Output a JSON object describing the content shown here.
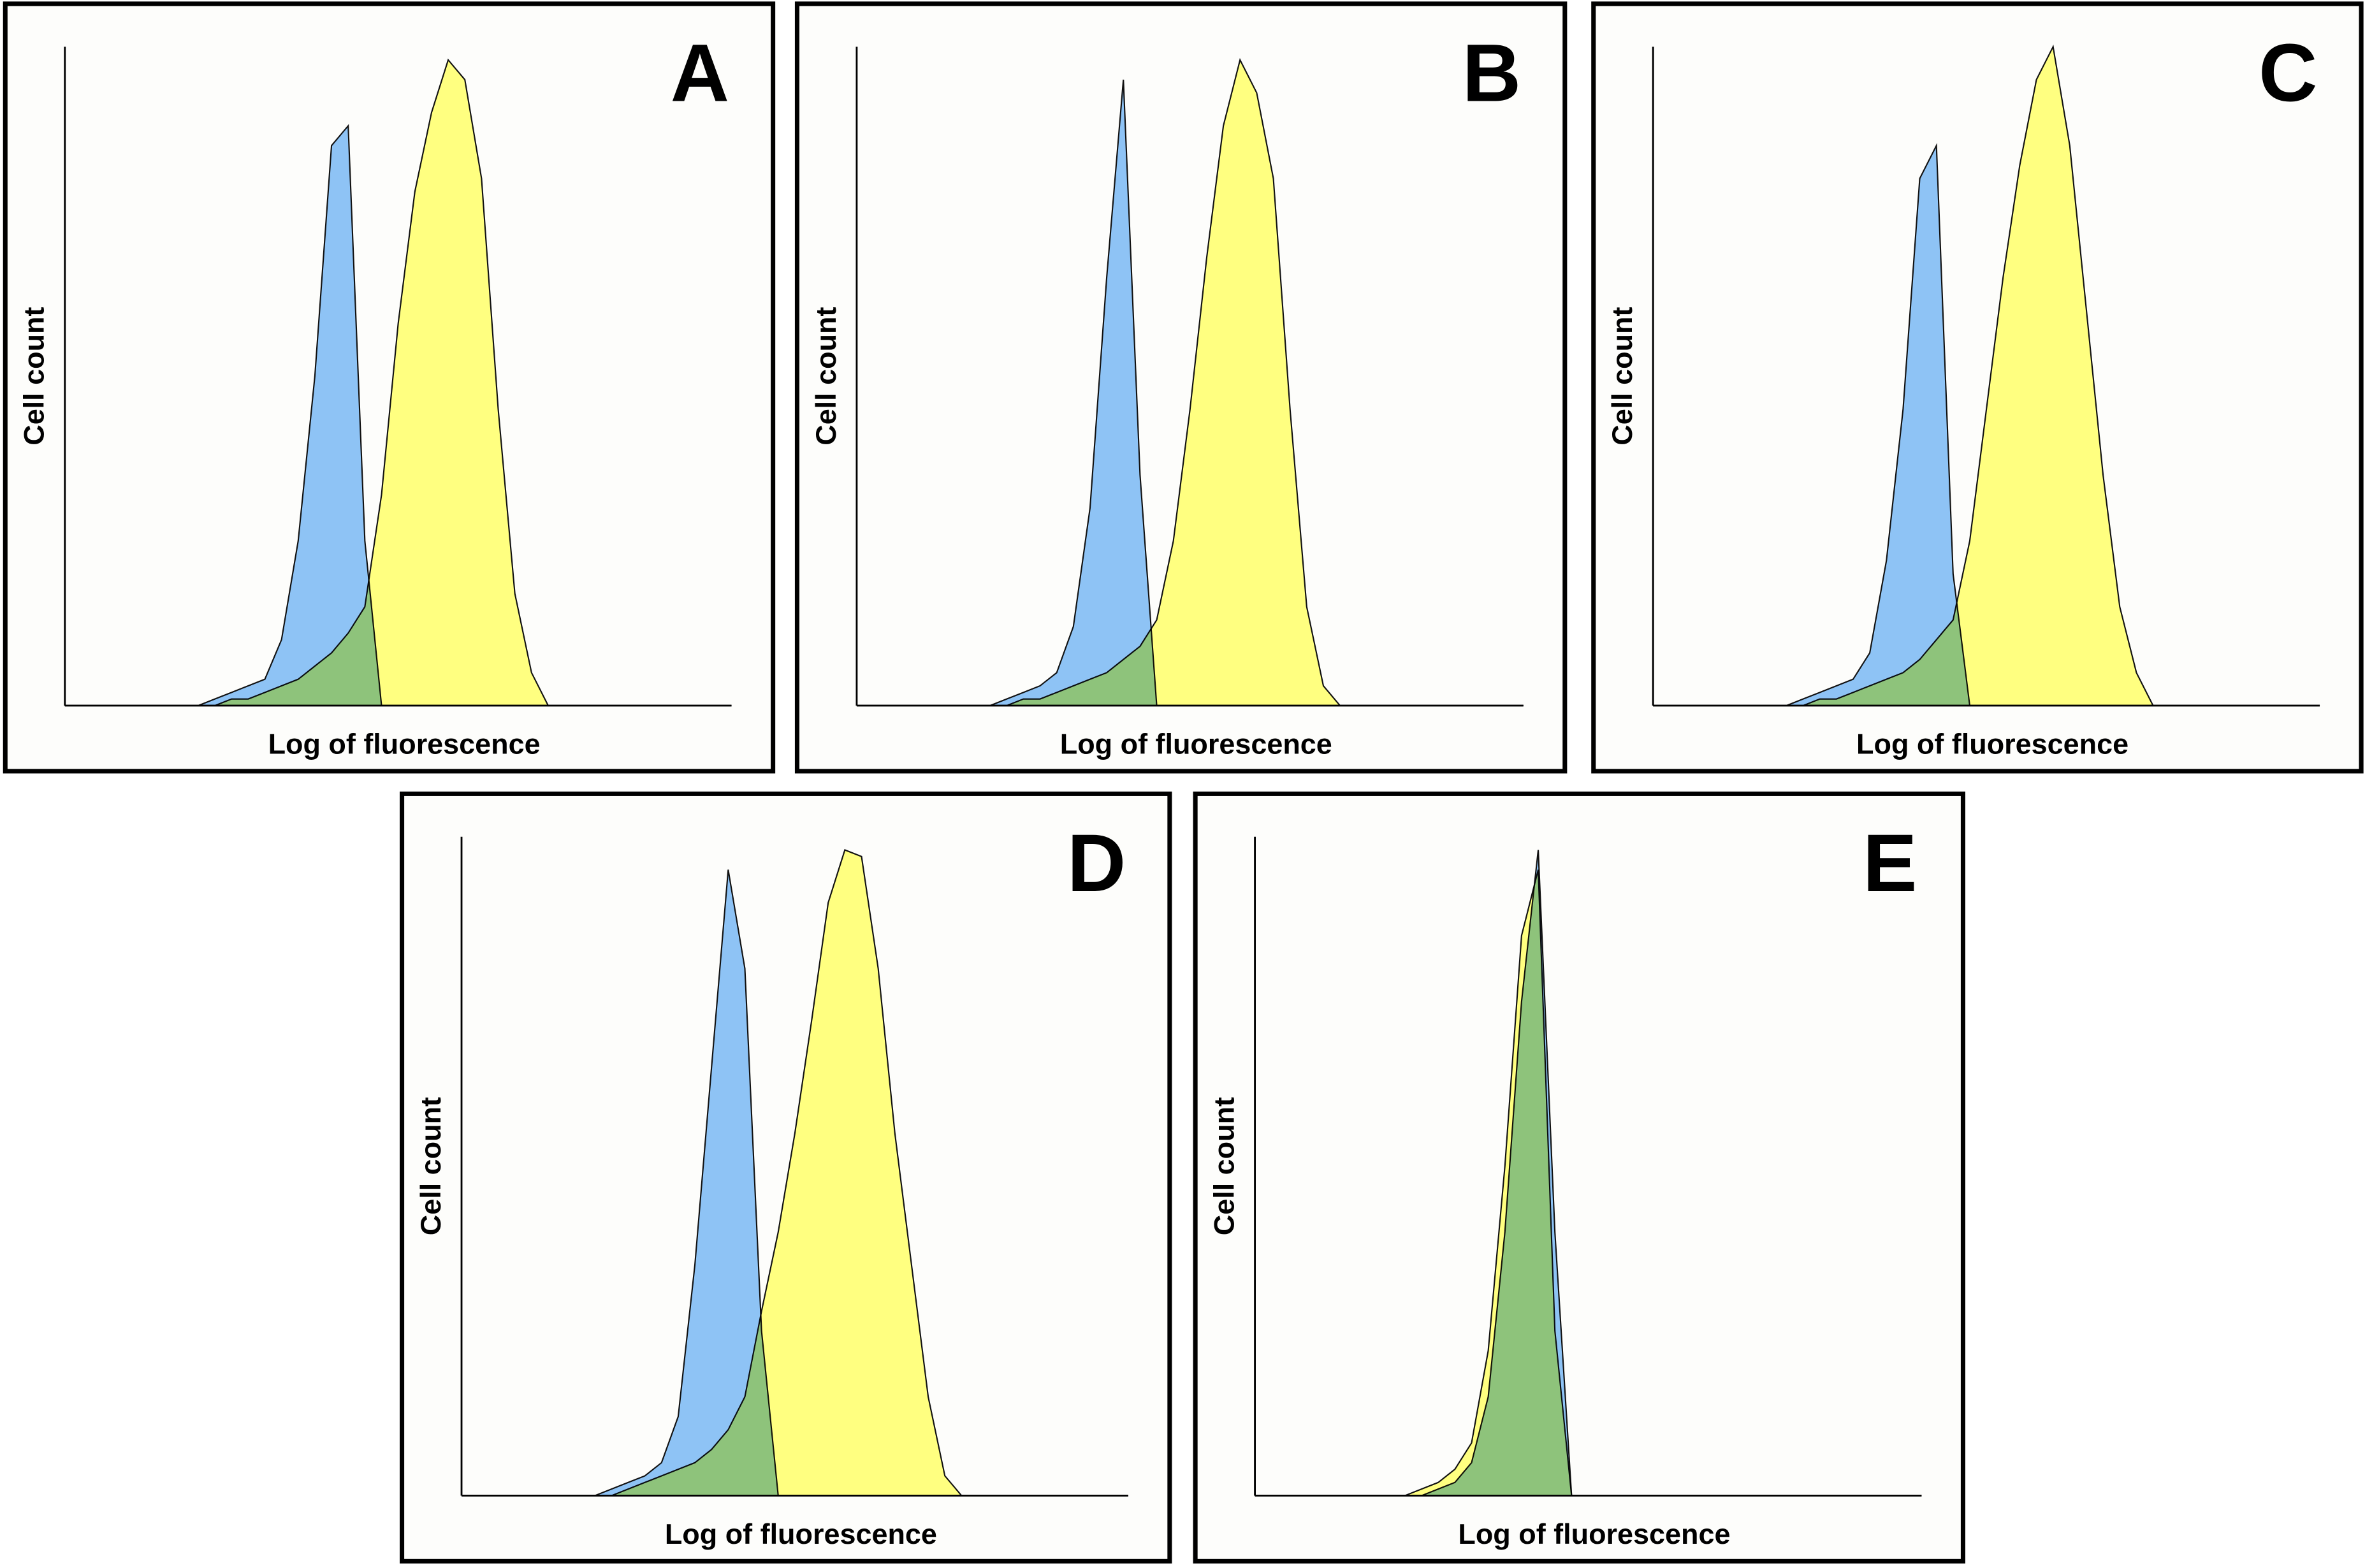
{
  "chart_data": [
    {
      "type": "area",
      "panel_label": "A",
      "ylabel": "Cell count",
      "xlabel": "Log of fluorescence",
      "xlim": [
        0,
        100
      ],
      "ylim": [
        0,
        100
      ],
      "x": [
        0,
        2.5,
        5,
        7.5,
        10,
        12.5,
        15,
        17.5,
        20,
        22.5,
        25,
        27.5,
        30,
        32.5,
        35,
        37.5,
        40,
        42.5,
        45,
        47.5,
        50,
        52.5,
        55,
        57.5,
        60,
        62.5,
        65,
        67.5,
        70,
        72.5,
        75,
        77.5,
        80,
        82.5,
        85,
        87.5,
        90,
        92.5,
        95,
        97.5,
        100
      ],
      "series": [
        {
          "color": "#8ec3f5",
          "values": [
            0,
            0,
            0,
            0,
            0,
            0,
            0,
            0,
            0,
            1,
            2,
            3,
            4,
            10,
            25,
            50,
            85,
            88,
            25,
            0,
            0,
            0,
            0,
            0,
            0,
            0,
            0,
            0,
            0,
            0,
            0,
            0,
            0,
            0,
            0,
            0,
            0,
            0,
            0,
            0,
            0
          ]
        },
        {
          "color": "#ffff80",
          "values": [
            0,
            0,
            0,
            0,
            0,
            0,
            0,
            0,
            0,
            0,
            1,
            1,
            2,
            3,
            4,
            6,
            8,
            11,
            15,
            32,
            58,
            78,
            90,
            98,
            95,
            80,
            45,
            17,
            5,
            0,
            0,
            0,
            0,
            0,
            0,
            0,
            0,
            0,
            0,
            0,
            0
          ]
        }
      ]
    },
    {
      "type": "area",
      "panel_label": "B",
      "ylabel": "Cell count",
      "xlabel": "Log of fluorescence",
      "xlim": [
        0,
        100
      ],
      "ylim": [
        0,
        100
      ],
      "x": [
        0,
        2.5,
        5,
        7.5,
        10,
        12.5,
        15,
        17.5,
        20,
        22.5,
        25,
        27.5,
        30,
        32.5,
        35,
        37.5,
        40,
        42.5,
        45,
        47.5,
        50,
        52.5,
        55,
        57.5,
        60,
        62.5,
        65,
        67.5,
        70,
        72.5,
        75,
        77.5,
        80,
        82.5,
        85,
        87.5,
        90,
        92.5,
        95,
        97.5,
        100
      ],
      "series": [
        {
          "color": "#8ec3f5",
          "values": [
            0,
            0,
            0,
            0,
            0,
            0,
            0,
            0,
            0,
            1,
            2,
            3,
            5,
            12,
            30,
            65,
            95,
            35,
            0,
            0,
            0,
            0,
            0,
            0,
            0,
            0,
            0,
            0,
            0,
            0,
            0,
            0,
            0,
            0,
            0,
            0,
            0,
            0,
            0,
            0,
            0
          ]
        },
        {
          "color": "#ffff80",
          "values": [
            0,
            0,
            0,
            0,
            0,
            0,
            0,
            0,
            0,
            0,
            1,
            1,
            2,
            3,
            4,
            5,
            7,
            9,
            13,
            25,
            45,
            68,
            88,
            98,
            93,
            80,
            45,
            15,
            3,
            0,
            0,
            0,
            0,
            0,
            0,
            0,
            0,
            0,
            0,
            0,
            0
          ]
        }
      ]
    },
    {
      "type": "area",
      "panel_label": "C",
      "ylabel": "Cell count",
      "xlabel": "Log of fluorescence",
      "xlim": [
        0,
        100
      ],
      "ylim": [
        0,
        100
      ],
      "x": [
        0,
        2.5,
        5,
        7.5,
        10,
        12.5,
        15,
        17.5,
        20,
        22.5,
        25,
        27.5,
        30,
        32.5,
        35,
        37.5,
        40,
        42.5,
        45,
        47.5,
        50,
        52.5,
        55,
        57.5,
        60,
        62.5,
        65,
        67.5,
        70,
        72.5,
        75,
        77.5,
        80,
        82.5,
        85,
        87.5,
        90,
        92.5,
        95,
        97.5,
        100
      ],
      "series": [
        {
          "color": "#8ec3f5",
          "values": [
            0,
            0,
            0,
            0,
            0,
            0,
            0,
            0,
            0,
            1,
            2,
            3,
            4,
            8,
            22,
            45,
            80,
            85,
            20,
            0,
            0,
            0,
            0,
            0,
            0,
            0,
            0,
            0,
            0,
            0,
            0,
            0,
            0,
            0,
            0,
            0,
            0,
            0,
            0,
            0,
            0
          ]
        },
        {
          "color": "#ffff80",
          "values": [
            0,
            0,
            0,
            0,
            0,
            0,
            0,
            0,
            0,
            0,
            1,
            1,
            2,
            3,
            4,
            5,
            7,
            10,
            13,
            25,
            45,
            65,
            82,
            95,
            100,
            85,
            60,
            35,
            15,
            5,
            0,
            0,
            0,
            0,
            0,
            0,
            0,
            0,
            0,
            0,
            0
          ]
        }
      ]
    },
    {
      "type": "area",
      "panel_label": "D",
      "ylabel": "Cell count",
      "xlabel": "Log of fluorescence",
      "xlim": [
        0,
        100
      ],
      "ylim": [
        0,
        100
      ],
      "x": [
        0,
        2.5,
        5,
        7.5,
        10,
        12.5,
        15,
        17.5,
        20,
        22.5,
        25,
        27.5,
        30,
        32.5,
        35,
        37.5,
        40,
        42.5,
        45,
        47.5,
        50,
        52.5,
        55,
        57.5,
        60,
        62.5,
        65,
        67.5,
        70,
        72.5,
        75,
        77.5,
        80,
        82.5,
        85,
        87.5,
        90,
        92.5,
        95,
        97.5,
        100
      ],
      "series": [
        {
          "color": "#8ec3f5",
          "values": [
            0,
            0,
            0,
            0,
            0,
            0,
            0,
            0,
            0,
            1,
            2,
            3,
            5,
            12,
            35,
            65,
            95,
            80,
            25,
            0,
            0,
            0,
            0,
            0,
            0,
            0,
            0,
            0,
            0,
            0,
            0,
            0,
            0,
            0,
            0,
            0,
            0,
            0,
            0,
            0,
            0
          ]
        },
        {
          "color": "#ffff80",
          "values": [
            0,
            0,
            0,
            0,
            0,
            0,
            0,
            0,
            0,
            0,
            1,
            2,
            3,
            4,
            5,
            7,
            10,
            15,
            28,
            40,
            55,
            72,
            90,
            98,
            97,
            80,
            55,
            35,
            15,
            3,
            0,
            0,
            0,
            0,
            0,
            0,
            0,
            0,
            0,
            0,
            0
          ]
        }
      ]
    },
    {
      "type": "area",
      "panel_label": "E",
      "ylabel": "Cell count",
      "xlabel": "Log of fluorescence",
      "xlim": [
        0,
        100
      ],
      "ylim": [
        0,
        100
      ],
      "x": [
        0,
        2.5,
        5,
        7.5,
        10,
        12.5,
        15,
        17.5,
        20,
        22.5,
        25,
        27.5,
        30,
        32.5,
        35,
        37.5,
        40,
        42.5,
        45,
        47.5,
        50,
        52.5,
        55,
        57.5,
        60,
        62.5,
        65,
        67.5,
        70,
        72.5,
        75,
        77.5,
        80,
        82.5,
        85,
        87.5,
        90,
        92.5,
        95,
        97.5,
        100
      ],
      "series": [
        {
          "color": "#8ec3f5",
          "values": [
            0,
            0,
            0,
            0,
            0,
            0,
            0,
            0,
            0,
            0,
            0,
            1,
            2,
            5,
            15,
            40,
            75,
            98,
            40,
            0,
            0,
            0,
            0,
            0,
            0,
            0,
            0,
            0,
            0,
            0,
            0,
            0,
            0,
            0,
            0,
            0,
            0,
            0,
            0,
            0,
            0
          ]
        },
        {
          "color": "#ffff80",
          "values": [
            0,
            0,
            0,
            0,
            0,
            0,
            0,
            0,
            0,
            0,
            1,
            2,
            4,
            8,
            22,
            50,
            85,
            95,
            25,
            0,
            0,
            0,
            0,
            0,
            0,
            0,
            0,
            0,
            0,
            0,
            0,
            0,
            0,
            0,
            0,
            0,
            0,
            0,
            0,
            0,
            0
          ]
        }
      ]
    }
  ]
}
